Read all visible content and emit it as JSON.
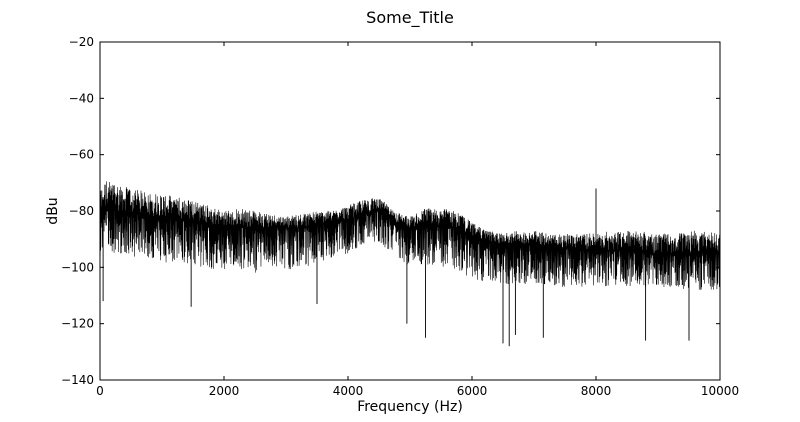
{
  "chart_data": {
    "type": "line",
    "title": "Some_Title",
    "xlabel": "Frequency (Hz)",
    "ylabel": "dBu",
    "xlim": [
      0,
      10000
    ],
    "ylim": [
      -140,
      -20
    ],
    "xticks": [
      0,
      2000,
      4000,
      6000,
      8000,
      10000
    ],
    "yticks": [
      -20,
      -40,
      -60,
      -80,
      -100,
      -120,
      -140
    ],
    "xtick_labels": [
      "0",
      "2000",
      "4000",
      "6000",
      "8000",
      "10000"
    ],
    "ytick_labels": [
      "−20",
      "−40",
      "−60",
      "−80",
      "−100",
      "−120",
      "−140"
    ],
    "grid": false,
    "legend": "none",
    "series": [
      {
        "color": "#000000",
        "x": [
          0,
          100,
          250,
          500,
          750,
          1000,
          1250,
          1500,
          1750,
          2000,
          2250,
          2500,
          2750,
          3000,
          3250,
          3500,
          3750,
          4000,
          4250,
          4500,
          4750,
          5000,
          5250,
          5500,
          5750,
          6000,
          6250,
          6500,
          6750,
          7000,
          7250,
          7500,
          7750,
          8000,
          8250,
          8500,
          8750,
          9000,
          9250,
          9500,
          9750,
          10000
        ],
        "upper": [
          -72,
          -69,
          -70,
          -72,
          -73,
          -74,
          -75,
          -76,
          -78,
          -80,
          -79,
          -80,
          -81,
          -82,
          -81,
          -80,
          -80,
          -78,
          -76,
          -75,
          -80,
          -82,
          -79,
          -79,
          -80,
          -84,
          -87,
          -88,
          -87,
          -87,
          -88,
          -88,
          -88,
          -88,
          -87,
          -87,
          -87,
          -88,
          -88,
          -87,
          -87,
          -88
        ],
        "center": [
          -82,
          -80,
          -80,
          -81,
          -82,
          -82,
          -83,
          -84,
          -85,
          -86,
          -86,
          -86,
          -86,
          -86,
          -86,
          -85,
          -84,
          -83,
          -81,
          -80,
          -84,
          -87,
          -85,
          -85,
          -86,
          -89,
          -91,
          -92,
          -92,
          -92,
          -93,
          -93,
          -94,
          -94,
          -94,
          -94,
          -95,
          -95,
          -95,
          -95,
          -95,
          -95
        ],
        "lower": [
          -96,
          -94,
          -95,
          -96,
          -97,
          -98,
          -99,
          -100,
          -101,
          -101,
          -101,
          -102,
          -101,
          -101,
          -100,
          -99,
          -97,
          -95,
          -92,
          -91,
          -96,
          -100,
          -99,
          -100,
          -101,
          -104,
          -106,
          -106,
          -106,
          -106,
          -107,
          -107,
          -107,
          -107,
          -107,
          -107,
          -107,
          -107,
          -107,
          -108,
          -108,
          -108
        ],
        "spikes": [
          {
            "x": 8000,
            "y": -72
          },
          {
            "x": 4950,
            "y": -120
          },
          {
            "x": 5250,
            "y": -125
          },
          {
            "x": 6600,
            "y": -128
          },
          {
            "x": 6500,
            "y": -127
          },
          {
            "x": 6700,
            "y": -124
          },
          {
            "x": 7150,
            "y": -125
          },
          {
            "x": 8800,
            "y": -126
          },
          {
            "x": 9500,
            "y": -126
          },
          {
            "x": 50,
            "y": -112
          },
          {
            "x": 3500,
            "y": -113
          },
          {
            "x": 1470,
            "y": -114
          }
        ]
      }
    ]
  }
}
